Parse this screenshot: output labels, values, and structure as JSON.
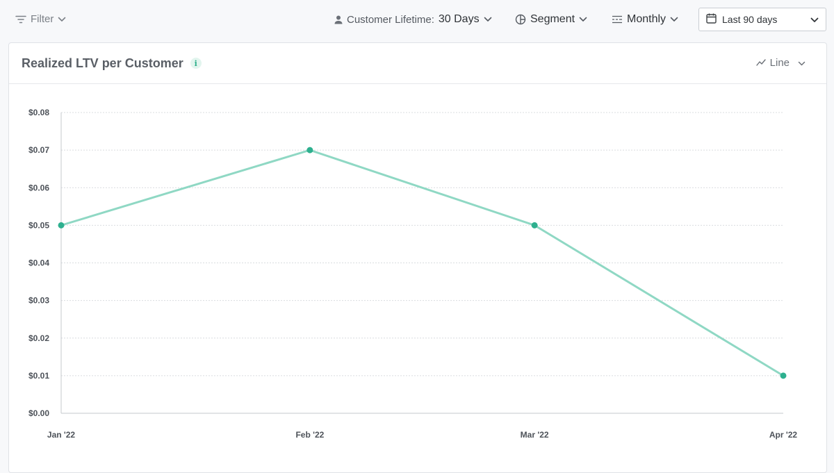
{
  "toolbar": {
    "filter_label": "Filter",
    "lifetime_label": "Customer Lifetime:",
    "lifetime_value": "30 Days",
    "segment_label": "Segment",
    "interval_label": "Monthly",
    "date_range_label": "Last 90 days"
  },
  "card": {
    "title": "Realized LTV per Customer",
    "info_glyph": "i",
    "view_label": "Line"
  },
  "icons": {
    "filter": "filter-icon",
    "person": "person-icon",
    "segment": "segment-icon",
    "interval": "interval-icon",
    "calendar": "calendar-icon",
    "line_chart": "line-chart-icon",
    "chevron": "chevron-down-icon"
  },
  "colors": {
    "line": "#8fd8c4",
    "point": "#2eb08f",
    "grid": "#d9dcdf"
  },
  "chart_data": {
    "type": "line",
    "title": "Realized LTV per Customer",
    "categories": [
      "Jan '22",
      "Feb '22",
      "Mar '22",
      "Apr '22"
    ],
    "x": [
      "2022-01-01",
      "2022-02-01",
      "2022-03-01",
      "2022-04-01"
    ],
    "values": [
      0.05,
      0.07,
      0.05,
      0.01
    ],
    "ylim": [
      0,
      0.08
    ],
    "yticks": [
      0.0,
      0.01,
      0.02,
      0.03,
      0.04,
      0.05,
      0.06,
      0.07,
      0.08
    ],
    "ytick_labels": [
      "$0.00",
      "$0.01",
      "$0.02",
      "$0.03",
      "$0.04",
      "$0.05",
      "$0.06",
      "$0.07",
      "$0.08"
    ],
    "grid": true,
    "legend": "none"
  }
}
